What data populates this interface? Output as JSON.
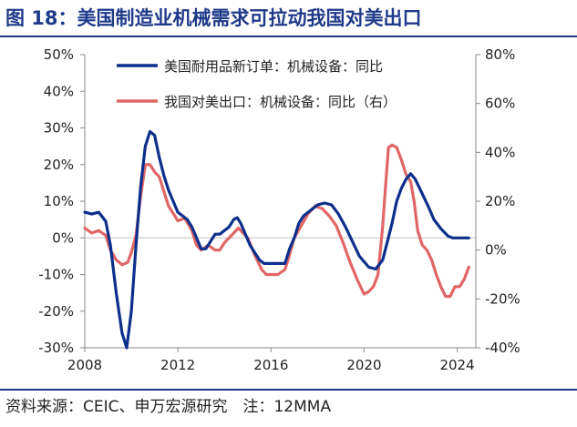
{
  "figure_title": "图 18：美国制造业机械需求可拉动我国对美出口",
  "source_note": "资料来源：CEIC、申万宏源研究　注：12MMA",
  "colors": {
    "primary": "#0d2f8c",
    "secondary": "#e06666",
    "title": "#1f3a8a"
  },
  "chart_data": {
    "type": "line",
    "title": "",
    "x_ticks": [
      "2008",
      "2012",
      "2016",
      "2020",
      "2024"
    ],
    "y_left": {
      "ticks": [
        "50%",
        "40%",
        "30%",
        "20%",
        "10%",
        "0%",
        "-10%",
        "-20%",
        "-30%"
      ],
      "range": [
        -30,
        50
      ]
    },
    "y_right": {
      "ticks": [
        "80%",
        "60%",
        "40%",
        "20%",
        "0%",
        "-20%",
        "-40%"
      ],
      "range": [
        -40,
        80
      ]
    },
    "x_range": [
      2008,
      2024.8
    ],
    "legend_position": "top-center",
    "series": [
      {
        "name": "美国耐用品新订单：机械设备：同比",
        "axis": "left",
        "points": [
          [
            2008.0,
            7
          ],
          [
            2008.3,
            6.5
          ],
          [
            2008.6,
            7
          ],
          [
            2008.9,
            4.5
          ],
          [
            2009.1,
            -2
          ],
          [
            2009.35,
            -15
          ],
          [
            2009.6,
            -26
          ],
          [
            2009.8,
            -30
          ],
          [
            2010.0,
            -20
          ],
          [
            2010.2,
            -2
          ],
          [
            2010.4,
            14
          ],
          [
            2010.6,
            25
          ],
          [
            2010.8,
            29
          ],
          [
            2011.0,
            28
          ],
          [
            2011.2,
            22
          ],
          [
            2011.4,
            17
          ],
          [
            2011.6,
            13
          ],
          [
            2011.8,
            10
          ],
          [
            2012.0,
            7
          ],
          [
            2012.2,
            6
          ],
          [
            2012.4,
            5
          ],
          [
            2012.6,
            3
          ],
          [
            2012.8,
            0
          ],
          [
            2013.0,
            -3
          ],
          [
            2013.2,
            -3
          ],
          [
            2013.4,
            -1
          ],
          [
            2013.6,
            1
          ],
          [
            2013.8,
            1
          ],
          [
            2014.0,
            2
          ],
          [
            2014.2,
            3
          ],
          [
            2014.4,
            5
          ],
          [
            2014.55,
            5.5
          ],
          [
            2014.7,
            4
          ],
          [
            2014.9,
            1
          ],
          [
            2015.1,
            -2
          ],
          [
            2015.3,
            -4
          ],
          [
            2015.5,
            -6
          ],
          [
            2015.7,
            -7
          ],
          [
            2016.0,
            -7
          ],
          [
            2016.3,
            -7
          ],
          [
            2016.6,
            -7
          ],
          [
            2016.8,
            -3
          ],
          [
            2017.0,
            0
          ],
          [
            2017.2,
            4
          ],
          [
            2017.4,
            6
          ],
          [
            2017.6,
            7
          ],
          [
            2017.8,
            8
          ],
          [
            2018.0,
            9
          ],
          [
            2018.3,
            9.5
          ],
          [
            2018.6,
            9
          ],
          [
            2018.9,
            6.5
          ],
          [
            2019.2,
            3
          ],
          [
            2019.5,
            -1
          ],
          [
            2019.8,
            -5
          ],
          [
            2020.2,
            -8
          ],
          [
            2020.5,
            -8.5
          ],
          [
            2020.8,
            -6
          ],
          [
            2021.0,
            -1
          ],
          [
            2021.2,
            4
          ],
          [
            2021.4,
            10
          ],
          [
            2021.6,
            13.5
          ],
          [
            2021.8,
            16
          ],
          [
            2022.0,
            17.5
          ],
          [
            2022.2,
            16
          ],
          [
            2022.5,
            12
          ],
          [
            2022.8,
            8
          ],
          [
            2023.0,
            5
          ],
          [
            2023.3,
            2.5
          ],
          [
            2023.6,
            0.5
          ],
          [
            2023.8,
            0
          ],
          [
            2024.2,
            0
          ],
          [
            2024.5,
            0
          ]
        ]
      },
      {
        "name": "我国对美出口：机械设备：同比（右）",
        "axis": "right",
        "points": [
          [
            2008.0,
            9
          ],
          [
            2008.3,
            7
          ],
          [
            2008.6,
            8
          ],
          [
            2008.9,
            6
          ],
          [
            2009.1,
            0
          ],
          [
            2009.35,
            -4
          ],
          [
            2009.6,
            -6
          ],
          [
            2009.85,
            -5
          ],
          [
            2010.0,
            -1
          ],
          [
            2010.2,
            6
          ],
          [
            2010.4,
            22
          ],
          [
            2010.6,
            35
          ],
          [
            2010.8,
            35
          ],
          [
            2011.0,
            32
          ],
          [
            2011.2,
            30
          ],
          [
            2011.4,
            24
          ],
          [
            2011.6,
            18
          ],
          [
            2011.8,
            15
          ],
          [
            2012.0,
            12
          ],
          [
            2012.3,
            13
          ],
          [
            2012.6,
            8
          ],
          [
            2012.8,
            2
          ],
          [
            2013.0,
            0
          ],
          [
            2013.3,
            2
          ],
          [
            2013.6,
            0
          ],
          [
            2013.8,
            0
          ],
          [
            2014.0,
            3
          ],
          [
            2014.3,
            6
          ],
          [
            2014.6,
            9
          ],
          [
            2014.8,
            7
          ],
          [
            2015.0,
            5
          ],
          [
            2015.3,
            -2
          ],
          [
            2015.6,
            -8
          ],
          [
            2015.8,
            -10
          ],
          [
            2016.0,
            -10
          ],
          [
            2016.3,
            -10
          ],
          [
            2016.6,
            -8
          ],
          [
            2016.8,
            -2
          ],
          [
            2017.0,
            5
          ],
          [
            2017.3,
            10
          ],
          [
            2017.6,
            15
          ],
          [
            2017.9,
            18
          ],
          [
            2018.2,
            17
          ],
          [
            2018.5,
            14
          ],
          [
            2018.8,
            10
          ],
          [
            2019.1,
            3
          ],
          [
            2019.4,
            -5
          ],
          [
            2019.7,
            -12
          ],
          [
            2020.0,
            -18
          ],
          [
            2020.2,
            -17
          ],
          [
            2020.4,
            -15
          ],
          [
            2020.6,
            -10
          ],
          [
            2020.8,
            10
          ],
          [
            2020.95,
            30
          ],
          [
            2021.05,
            42
          ],
          [
            2021.2,
            43
          ],
          [
            2021.4,
            42
          ],
          [
            2021.6,
            37
          ],
          [
            2021.8,
            31
          ],
          [
            2022.0,
            28
          ],
          [
            2022.15,
            20
          ],
          [
            2022.3,
            8
          ],
          [
            2022.5,
            2
          ],
          [
            2022.7,
            0
          ],
          [
            2022.9,
            -4
          ],
          [
            2023.1,
            -10
          ],
          [
            2023.3,
            -15
          ],
          [
            2023.5,
            -19
          ],
          [
            2023.7,
            -19
          ],
          [
            2023.9,
            -15
          ],
          [
            2024.1,
            -15
          ],
          [
            2024.3,
            -12
          ],
          [
            2024.5,
            -7
          ]
        ]
      }
    ]
  }
}
